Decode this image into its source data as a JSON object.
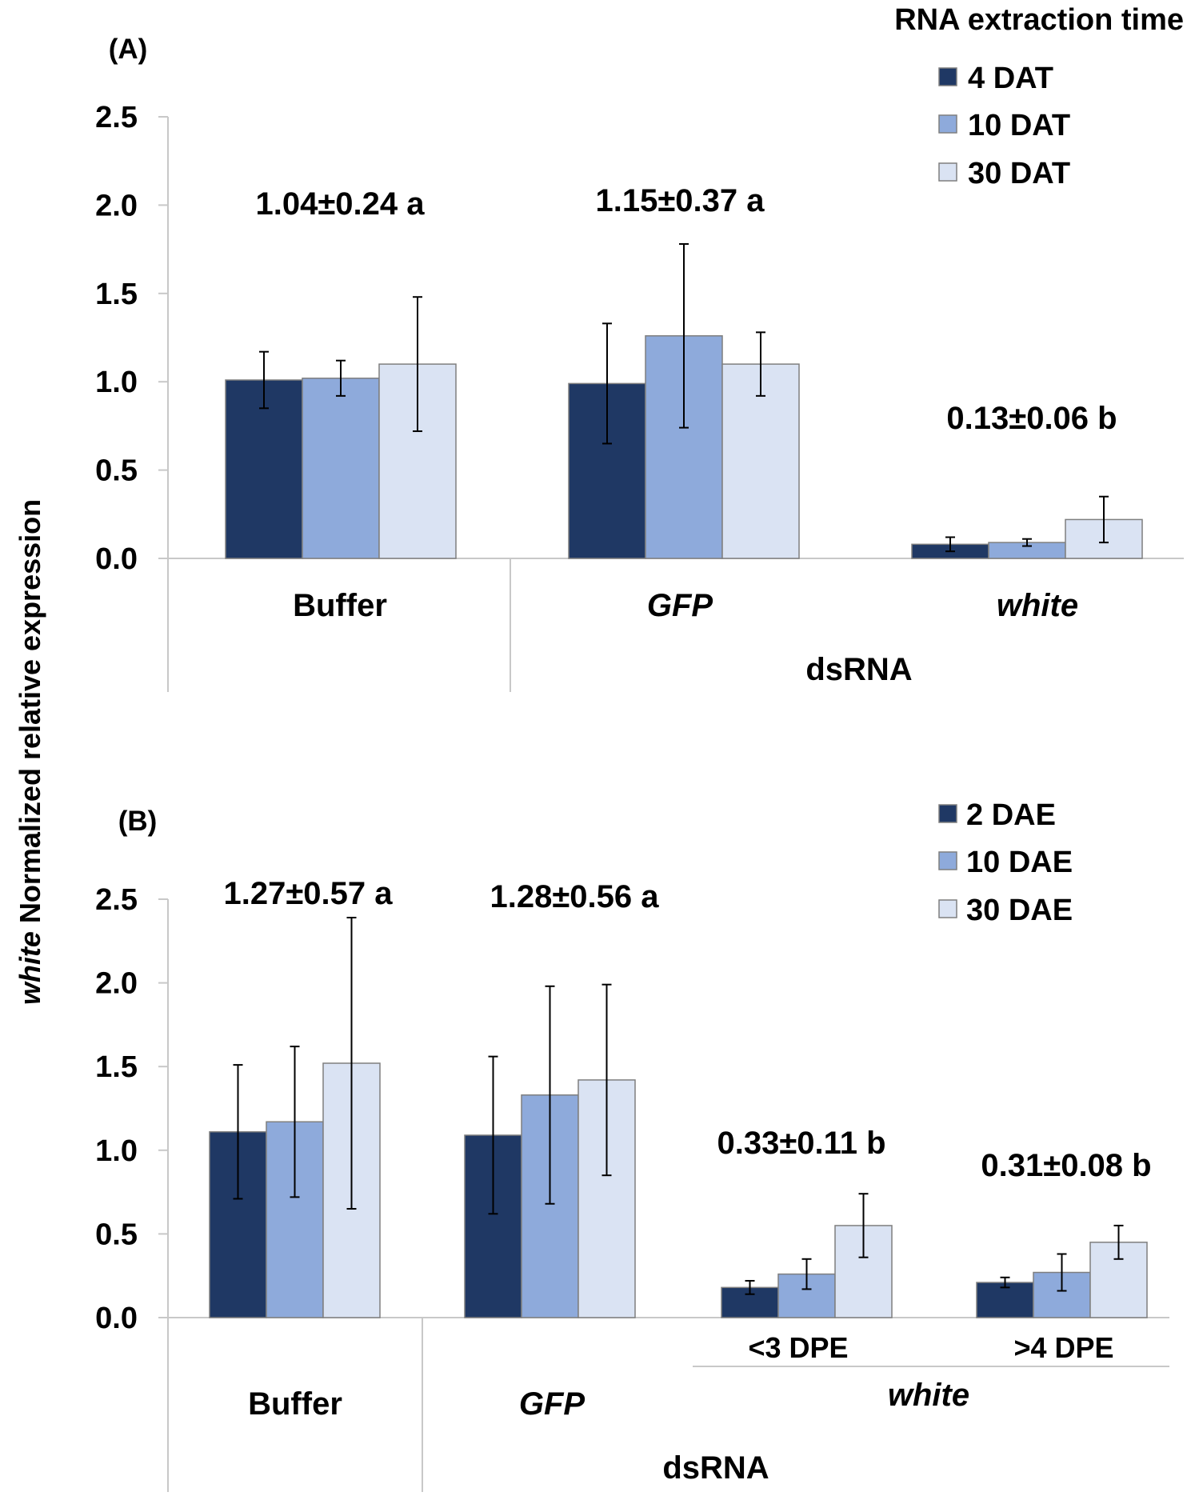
{
  "figure": {
    "ylabel_italic": "white",
    "ylabel_rest": " Normalized relative expression"
  },
  "chart_data": [
    {
      "type": "bar",
      "panel_label": "(A)",
      "legend_title": "RNA extraction time",
      "ylim": [
        0,
        2.5
      ],
      "yticks": [
        "0.0",
        "0.5",
        "1.0",
        "1.5",
        "2.0",
        "2.5"
      ],
      "xlabel": "dsRNA",
      "categories": [
        {
          "label": "Buffer",
          "italic": false
        },
        {
          "label": "GFP",
          "italic": true
        },
        {
          "label": "white",
          "italic": true
        }
      ],
      "series": [
        {
          "name": "4 DAT",
          "color": "#1f3864",
          "values": [
            1.01,
            0.99,
            0.08
          ],
          "errors": [
            0.16,
            0.34,
            0.04
          ]
        },
        {
          "name": "10 DAT",
          "color": "#8eaadb",
          "values": [
            1.02,
            1.26,
            0.09
          ],
          "errors": [
            0.1,
            0.52,
            0.02
          ]
        },
        {
          "name": "30 DAT",
          "color": "#dae3f3",
          "values": [
            1.1,
            1.1,
            0.22
          ],
          "errors": [
            0.38,
            0.18,
            0.13
          ]
        }
      ],
      "annotations": [
        "1.04±0.24 a",
        "1.15±0.37 a",
        "0.13±0.06 b"
      ]
    },
    {
      "type": "bar",
      "panel_label": "(B)",
      "ylim": [
        0,
        2.5
      ],
      "yticks": [
        "0.0",
        "0.5",
        "1.0",
        "1.5",
        "2.0",
        "2.5"
      ],
      "xlabel": "dsRNA",
      "categories": [
        {
          "label": "Buffer",
          "italic": false
        },
        {
          "label": "GFP",
          "italic": true
        },
        {
          "label": "<3 DPE",
          "italic": false
        },
        {
          "label": ">4 DPE",
          "italic": false
        }
      ],
      "group_label": {
        "label": "white",
        "italic": true
      },
      "series": [
        {
          "name": "2 DAE",
          "color": "#1f3864",
          "values": [
            1.11,
            1.09,
            0.18,
            0.21
          ],
          "errors": [
            0.4,
            0.47,
            0.04,
            0.03
          ]
        },
        {
          "name": "10 DAE",
          "color": "#8eaadb",
          "values": [
            1.17,
            1.33,
            0.26,
            0.27
          ],
          "errors": [
            0.45,
            0.65,
            0.09,
            0.11
          ]
        },
        {
          "name": "30 DAE",
          "color": "#dae3f3",
          "values": [
            1.52,
            1.42,
            0.55,
            0.45
          ],
          "errors": [
            0.87,
            0.57,
            0.19,
            0.1
          ]
        }
      ],
      "annotations": [
        "1.27±0.57 a",
        "1.28±0.56 a",
        "0.33±0.11 b",
        "0.31±0.08 b"
      ]
    }
  ]
}
